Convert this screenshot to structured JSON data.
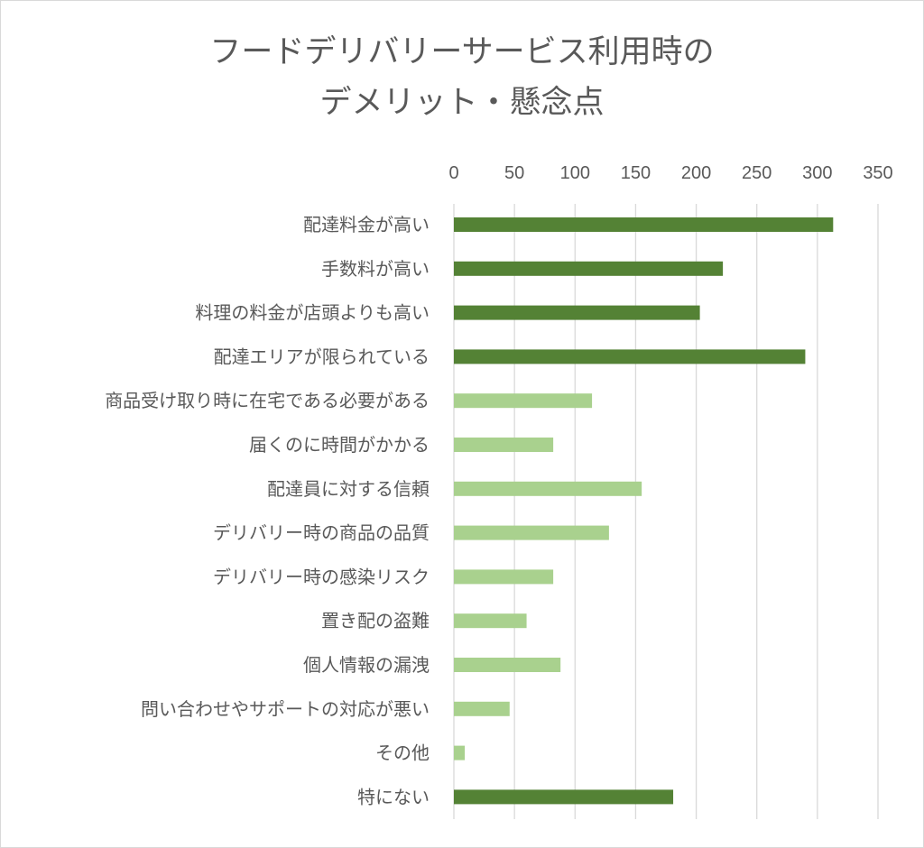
{
  "chart_data": {
    "type": "bar",
    "orientation": "horizontal",
    "title": "フードデリバリーサービス利用時のデメリット・懸念点",
    "title_lines": [
      "フードデリバリーサービス利用時の",
      "デメリット・懸念点"
    ],
    "xlim": [
      0,
      350
    ],
    "xticks": [
      0,
      50,
      100,
      150,
      200,
      250,
      300,
      350
    ],
    "axis_position": "top",
    "grid": true,
    "legend": "none",
    "categories": [
      "配達料金が高い",
      "手数料が高い",
      "料理の料金が店頭よりも高い",
      "配達エリアが限られている",
      "商品受け取り時に在宅である必要がある",
      "届くのに時間がかかる",
      "配達員に対する信頼",
      "デリバリー時の商品の品質",
      "デリバリー時の感染リスク",
      "置き配の盗難",
      "個人情報の漏洩",
      "問い合わせやサポートの対応が悪い",
      "その他",
      "特にない"
    ],
    "values": [
      313,
      222,
      203,
      290,
      114,
      82,
      155,
      128,
      82,
      60,
      88,
      46,
      9,
      181
    ],
    "bar_colors": [
      "#548235",
      "#548235",
      "#548235",
      "#548235",
      "#a9d18e",
      "#a9d18e",
      "#a9d18e",
      "#a9d18e",
      "#a9d18e",
      "#a9d18e",
      "#a9d18e",
      "#a9d18e",
      "#a9d18e",
      "#548235"
    ]
  }
}
